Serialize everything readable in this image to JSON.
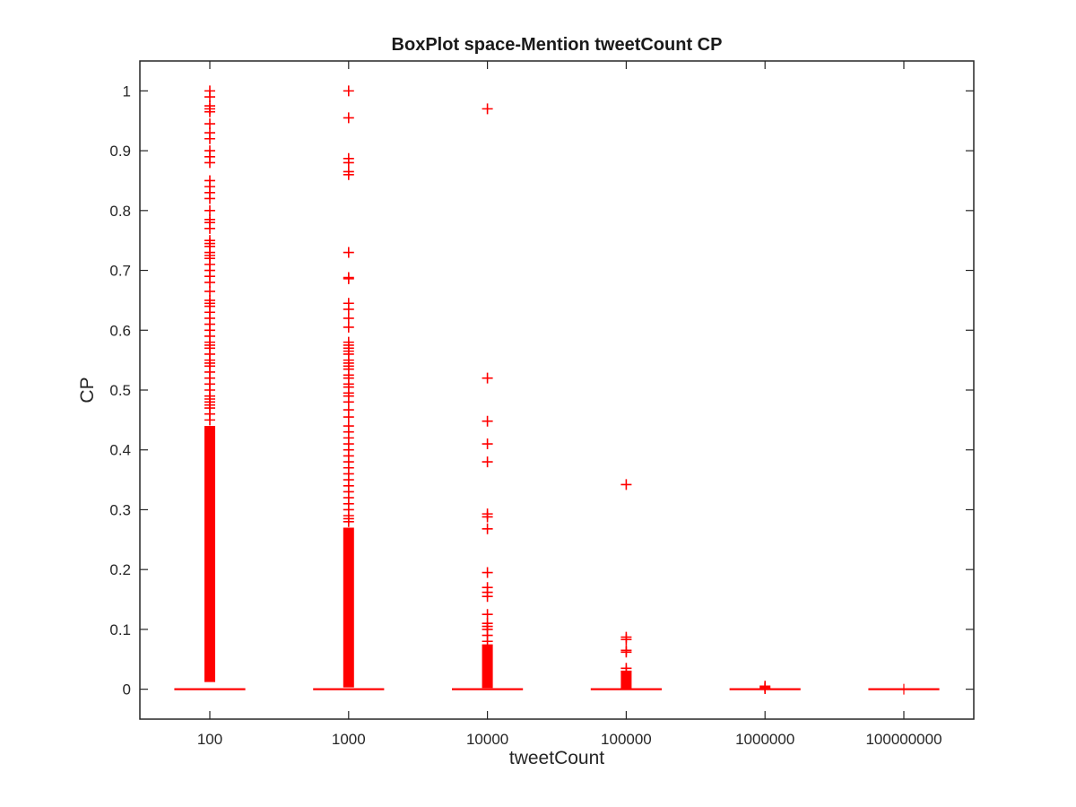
{
  "chart_data": {
    "type": "boxplot",
    "title": "BoxPlot space-Mention tweetCount CP",
    "xlabel": "tweetCount",
    "ylabel": "CP",
    "ylim": [
      -0.05,
      1.05
    ],
    "yticks": [
      0,
      0.1,
      0.2,
      0.3,
      0.4,
      0.5,
      0.6,
      0.7,
      0.8,
      0.9,
      1
    ],
    "ytick_labels": [
      "0",
      "0.1",
      "0.2",
      "0.3",
      "0.4",
      "0.5",
      "0.6",
      "0.7",
      "0.8",
      "0.9",
      "1"
    ],
    "categories": [
      "100",
      "1000",
      "10000",
      "100000",
      "1000000",
      "100000000"
    ],
    "grid": false,
    "colors": {
      "box": "#ff0000",
      "outlier": "#ff0000",
      "axes": "#262626"
    },
    "groups": [
      {
        "category": "100",
        "median": 0,
        "q1": 0,
        "q3": 0,
        "whisker_low": 0,
        "whisker_high": 0,
        "outlier_band": [
          0.012,
          0.44
        ],
        "outliers": [
          1.0,
          0.99,
          0.975,
          0.97,
          0.965,
          0.945,
          0.93,
          0.92,
          0.9,
          0.89,
          0.88,
          0.85,
          0.84,
          0.83,
          0.82,
          0.8,
          0.785,
          0.78,
          0.77,
          0.75,
          0.745,
          0.74,
          0.73,
          0.725,
          0.72,
          0.71,
          0.7,
          0.69,
          0.68,
          0.665,
          0.65,
          0.645,
          0.64,
          0.63,
          0.62,
          0.61,
          0.6,
          0.59,
          0.58,
          0.575,
          0.57,
          0.56,
          0.55,
          0.545,
          0.54,
          0.53,
          0.52,
          0.51,
          0.5,
          0.49,
          0.485,
          0.48,
          0.475,
          0.47,
          0.46,
          0.45
        ]
      },
      {
        "category": "1000",
        "median": 0,
        "q1": 0,
        "q3": 0,
        "whisker_low": 0,
        "whisker_high": 0,
        "outlier_band": [
          0.003,
          0.27
        ],
        "outliers": [
          1.0,
          0.955,
          0.887,
          0.88,
          0.865,
          0.86,
          0.73,
          0.688,
          0.686,
          0.645,
          0.635,
          0.62,
          0.605,
          0.58,
          0.575,
          0.57,
          0.565,
          0.56,
          0.55,
          0.545,
          0.54,
          0.535,
          0.525,
          0.52,
          0.51,
          0.505,
          0.495,
          0.49,
          0.48,
          0.467,
          0.455,
          0.44,
          0.43,
          0.42,
          0.41,
          0.4,
          0.39,
          0.38,
          0.37,
          0.36,
          0.35,
          0.34,
          0.33,
          0.32,
          0.31,
          0.3,
          0.29,
          0.285,
          0.28
        ]
      },
      {
        "category": "10000",
        "median": 0,
        "q1": 0,
        "q3": 0,
        "whisker_low": 0,
        "whisker_high": 0,
        "outlier_band": [
          0.002,
          0.075
        ],
        "outliers": [
          0.97,
          0.52,
          0.448,
          0.41,
          0.38,
          0.293,
          0.288,
          0.268,
          0.195,
          0.17,
          0.162,
          0.155,
          0.125,
          0.11,
          0.105,
          0.1,
          0.09,
          0.08
        ]
      },
      {
        "category": "100000",
        "median": 0,
        "q1": 0,
        "q3": 0,
        "whisker_low": 0,
        "whisker_high": 0,
        "outlier_band": [
          0.001,
          0.03
        ],
        "outliers": [
          0.342,
          0.087,
          0.083,
          0.065,
          0.062,
          0.035,
          0.03
        ]
      },
      {
        "category": "1000000",
        "median": 0,
        "q1": 0,
        "q3": 0,
        "whisker_low": 0,
        "whisker_high": 0,
        "outlier_band": null,
        "outliers": [
          0.005,
          0.003,
          0.001
        ]
      },
      {
        "category": "100000000",
        "median": 0,
        "q1": 0,
        "q3": 0,
        "whisker_low": 0,
        "whisker_high": 0,
        "outlier_band": null,
        "outliers": []
      }
    ]
  }
}
